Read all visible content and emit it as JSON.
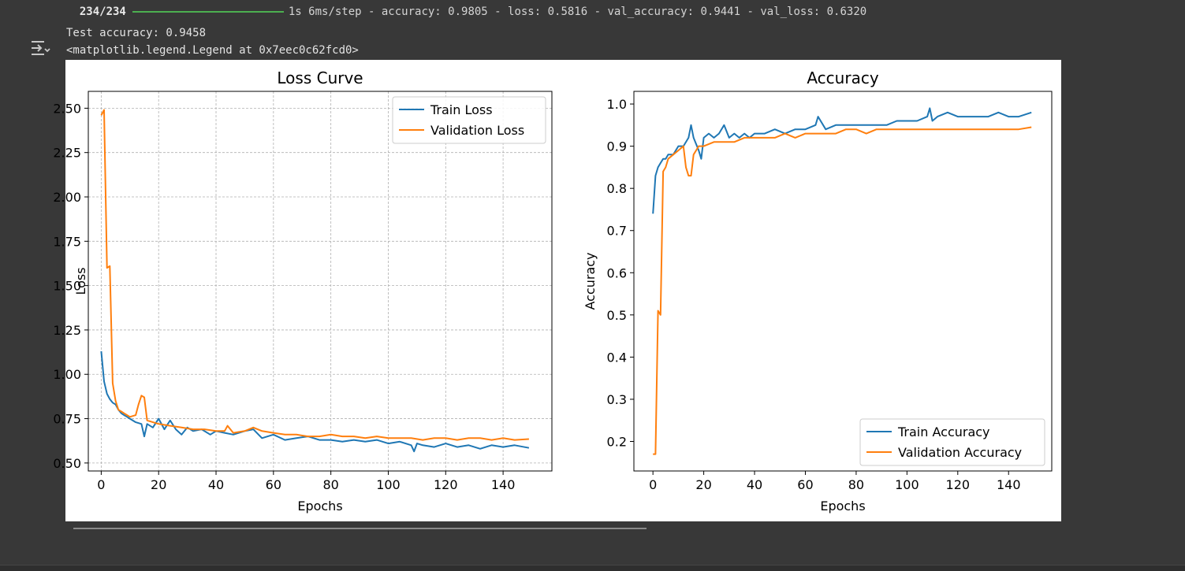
{
  "log": {
    "progress_label": "234/234",
    "step_text": "1s 6ms/step - accuracy: 0.9805 - loss: 0.5816 - val_accuracy: 0.9441 - val_loss: 0.6320"
  },
  "output": {
    "icon": "output-toggle-icon",
    "test_accuracy_line": "Test accuracy: 0.9458",
    "legend_repr_line": "<matplotlib.legend.Legend at 0x7eec0c62fcd0>"
  },
  "colors": {
    "train": "#1f77b4",
    "validation": "#ff7f0e",
    "page_bg": "#383838",
    "figure_bg": "#ffffff"
  },
  "chart_data": [
    {
      "type": "line",
      "title": "Loss Curve",
      "xlabel": "Epochs",
      "ylabel": "Loss",
      "xlim": [
        -4.5,
        157
      ],
      "ylim": [
        0.455,
        2.595
      ],
      "xticks": [
        0,
        20,
        40,
        60,
        80,
        100,
        120,
        140
      ],
      "yticks": [
        0.5,
        0.75,
        1.0,
        1.25,
        1.5,
        1.75,
        2.0,
        2.25,
        2.5
      ],
      "ytick_labels": [
        "0.50",
        "0.75",
        "1.00",
        "1.25",
        "1.50",
        "1.75",
        "2.00",
        "2.25",
        "2.50"
      ],
      "grid": true,
      "grid_style": "dashed",
      "legend_position": "upper right",
      "series": [
        {
          "name": "Train Loss",
          "color": "#1f77b4",
          "x": [
            0,
            1,
            2,
            3,
            4,
            5,
            6,
            7,
            8,
            9,
            10,
            12,
            14,
            15,
            16,
            18,
            20,
            22,
            24,
            26,
            28,
            30,
            32,
            35,
            38,
            40,
            43,
            46,
            50,
            53,
            56,
            60,
            64,
            68,
            72,
            76,
            80,
            84,
            88,
            92,
            96,
            100,
            104,
            108,
            109,
            110,
            112,
            116,
            120,
            124,
            128,
            132,
            136,
            140,
            144,
            149
          ],
          "y": [
            1.13,
            0.96,
            0.89,
            0.86,
            0.84,
            0.83,
            0.8,
            0.78,
            0.77,
            0.76,
            0.75,
            0.73,
            0.72,
            0.65,
            0.72,
            0.7,
            0.75,
            0.69,
            0.74,
            0.69,
            0.66,
            0.7,
            0.68,
            0.69,
            0.66,
            0.68,
            0.67,
            0.66,
            0.68,
            0.69,
            0.64,
            0.66,
            0.63,
            0.64,
            0.65,
            0.63,
            0.63,
            0.62,
            0.63,
            0.62,
            0.63,
            0.61,
            0.62,
            0.6,
            0.565,
            0.61,
            0.6,
            0.59,
            0.61,
            0.59,
            0.6,
            0.58,
            0.6,
            0.59,
            0.6,
            0.585
          ]
        },
        {
          "name": "Validation Loss",
          "color": "#ff7f0e",
          "x": [
            0,
            1,
            2,
            3,
            4,
            5,
            6,
            7,
            8,
            9,
            10,
            12,
            13,
            14,
            15,
            16,
            18,
            20,
            24,
            28,
            32,
            36,
            40,
            43,
            44,
            46,
            50,
            53,
            56,
            60,
            64,
            68,
            72,
            76,
            80,
            84,
            88,
            92,
            96,
            100,
            104,
            108,
            112,
            116,
            120,
            124,
            128,
            132,
            136,
            140,
            144,
            149
          ],
          "y": [
            2.46,
            2.49,
            1.6,
            1.61,
            0.95,
            0.85,
            0.8,
            0.79,
            0.78,
            0.77,
            0.76,
            0.77,
            0.83,
            0.88,
            0.87,
            0.74,
            0.73,
            0.72,
            0.71,
            0.7,
            0.69,
            0.69,
            0.68,
            0.68,
            0.71,
            0.67,
            0.68,
            0.7,
            0.68,
            0.67,
            0.66,
            0.66,
            0.65,
            0.65,
            0.66,
            0.65,
            0.65,
            0.64,
            0.65,
            0.64,
            0.64,
            0.64,
            0.63,
            0.64,
            0.64,
            0.63,
            0.64,
            0.64,
            0.63,
            0.64,
            0.63,
            0.635
          ]
        }
      ]
    },
    {
      "type": "line",
      "title": "Accuracy",
      "xlabel": "Epochs",
      "ylabel": "Accuracy",
      "xlim": [
        -7.5,
        157
      ],
      "ylim": [
        0.13,
        1.03
      ],
      "xticks": [
        0,
        20,
        40,
        60,
        80,
        100,
        120,
        140
      ],
      "yticks": [
        0.2,
        0.3,
        0.4,
        0.5,
        0.6,
        0.7,
        0.8,
        0.9,
        1.0
      ],
      "ytick_labels": [
        "0.2",
        "0.3",
        "0.4",
        "0.5",
        "0.6",
        "0.7",
        "0.8",
        "0.9",
        "1.0"
      ],
      "grid": false,
      "legend_position": "lower right",
      "series": [
        {
          "name": "Train Accuracy",
          "color": "#1f77b4",
          "x": [
            0,
            1,
            2,
            3,
            4,
            5,
            6,
            8,
            10,
            12,
            14,
            15,
            16,
            18,
            19,
            20,
            22,
            24,
            26,
            28,
            30,
            32,
            34,
            36,
            38,
            40,
            44,
            48,
            52,
            56,
            60,
            64,
            65,
            68,
            72,
            76,
            80,
            84,
            88,
            92,
            96,
            100,
            104,
            108,
            109,
            110,
            112,
            116,
            120,
            124,
            128,
            132,
            136,
            140,
            144,
            149
          ],
          "y": [
            0.74,
            0.83,
            0.85,
            0.86,
            0.87,
            0.87,
            0.88,
            0.88,
            0.9,
            0.9,
            0.92,
            0.95,
            0.92,
            0.89,
            0.87,
            0.92,
            0.93,
            0.92,
            0.93,
            0.95,
            0.92,
            0.93,
            0.92,
            0.93,
            0.92,
            0.93,
            0.93,
            0.94,
            0.93,
            0.94,
            0.94,
            0.95,
            0.97,
            0.94,
            0.95,
            0.95,
            0.95,
            0.95,
            0.95,
            0.95,
            0.96,
            0.96,
            0.96,
            0.97,
            0.99,
            0.96,
            0.97,
            0.98,
            0.97,
            0.97,
            0.97,
            0.97,
            0.98,
            0.97,
            0.97,
            0.98
          ]
        },
        {
          "name": "Validation Accuracy",
          "color": "#ff7f0e",
          "x": [
            0,
            1,
            2,
            3,
            4,
            5,
            6,
            8,
            10,
            12,
            13,
            14,
            15,
            16,
            18,
            20,
            24,
            28,
            32,
            36,
            40,
            44,
            48,
            52,
            56,
            60,
            64,
            68,
            72,
            76,
            80,
            84,
            88,
            92,
            96,
            100,
            104,
            108,
            112,
            116,
            120,
            124,
            128,
            132,
            136,
            140,
            144,
            149
          ],
          "y": [
            0.17,
            0.17,
            0.51,
            0.5,
            0.84,
            0.85,
            0.87,
            0.88,
            0.89,
            0.9,
            0.85,
            0.83,
            0.83,
            0.88,
            0.9,
            0.9,
            0.91,
            0.91,
            0.91,
            0.92,
            0.92,
            0.92,
            0.92,
            0.93,
            0.92,
            0.93,
            0.93,
            0.93,
            0.93,
            0.94,
            0.94,
            0.93,
            0.94,
            0.94,
            0.94,
            0.94,
            0.94,
            0.94,
            0.94,
            0.94,
            0.94,
            0.94,
            0.94,
            0.94,
            0.94,
            0.94,
            0.94,
            0.945
          ]
        }
      ]
    }
  ]
}
